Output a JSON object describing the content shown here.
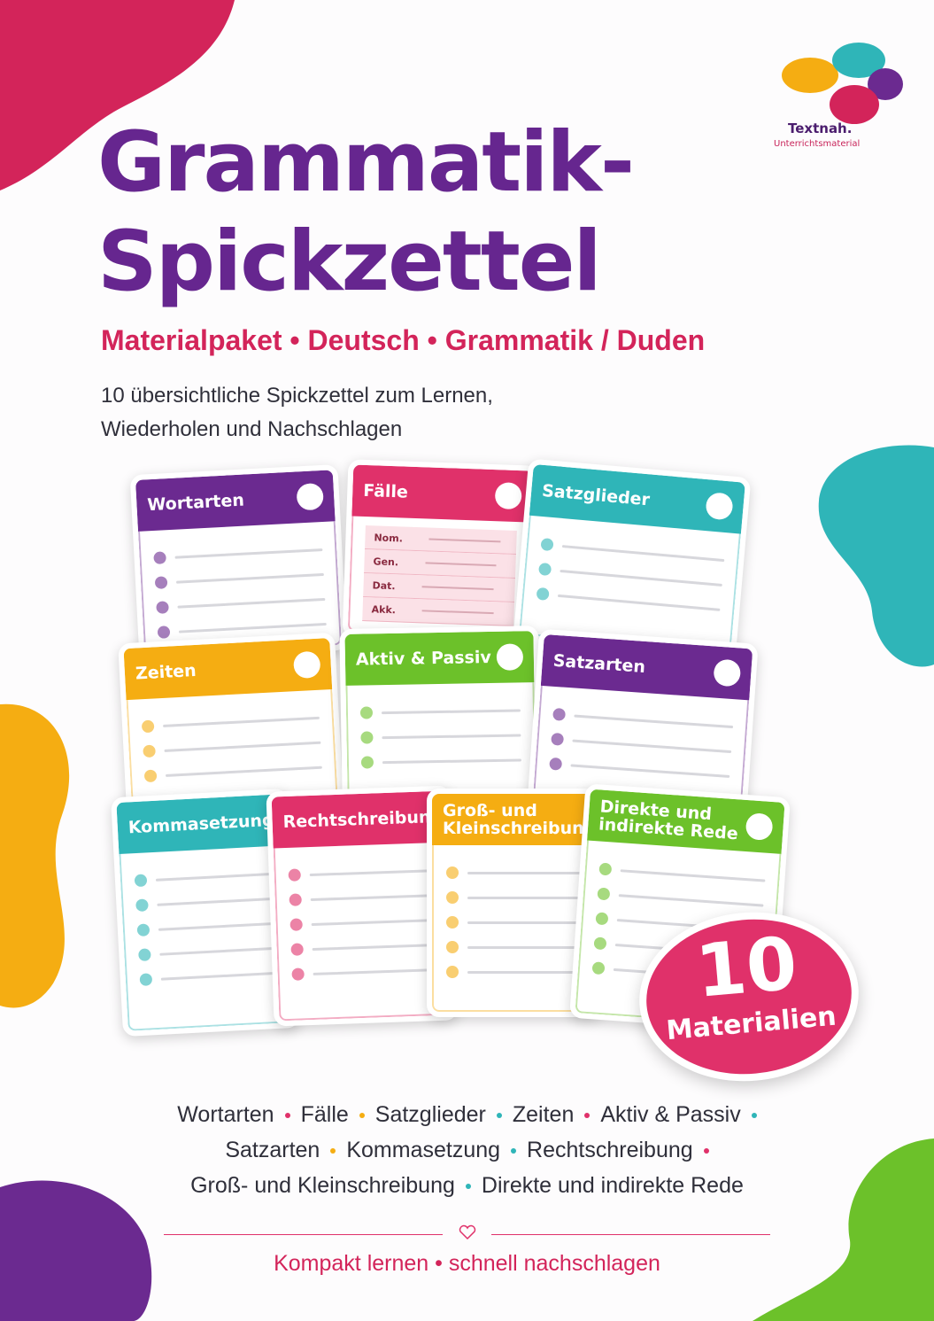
{
  "logo": {
    "name": "Textnah.",
    "tagline": "Unterrichtsmaterial"
  },
  "header": {
    "title_lines": [
      "Grammatik-",
      "Spickzettel"
    ],
    "subtitle": "Materialpaket • Deutsch • Grammatik / Duden",
    "description_lines": [
      "10 übersichtliche Spickzettel zum Lernen,",
      "Wiederholen und Nachschlagen"
    ]
  },
  "cards": [
    {
      "title": "Wortarten"
    },
    {
      "title": "Fälle",
      "rows": [
        "Nom.",
        "Gen.",
        "Dat.",
        "Akk."
      ]
    },
    {
      "title": "Satzglieder"
    },
    {
      "title": "Zeiten"
    },
    {
      "title": "Aktiv & Passiv"
    },
    {
      "title": "Satzarten"
    },
    {
      "title": "Kommasetzung"
    },
    {
      "title": "Rechtschreibung"
    },
    {
      "title": "Groß- und Kleinschreibung",
      "icon": "Aa"
    },
    {
      "title": "Direkte und indirekte Rede"
    }
  ],
  "badge": {
    "number": "10",
    "label": "Materialien"
  },
  "topics": {
    "lines": [
      [
        "Wortarten",
        "Fälle",
        "Satzglieder",
        "Zeiten",
        "Aktiv & Passiv"
      ],
      [
        "Satzarten",
        "Kommasetzung",
        "Rechtschreibung"
      ],
      [
        "Groß- und Kleinschreibung",
        "Direkte und indirekte Rede"
      ]
    ]
  },
  "footer": {
    "tagline": "Kompakt lernen • schnell nachschlagen"
  }
}
